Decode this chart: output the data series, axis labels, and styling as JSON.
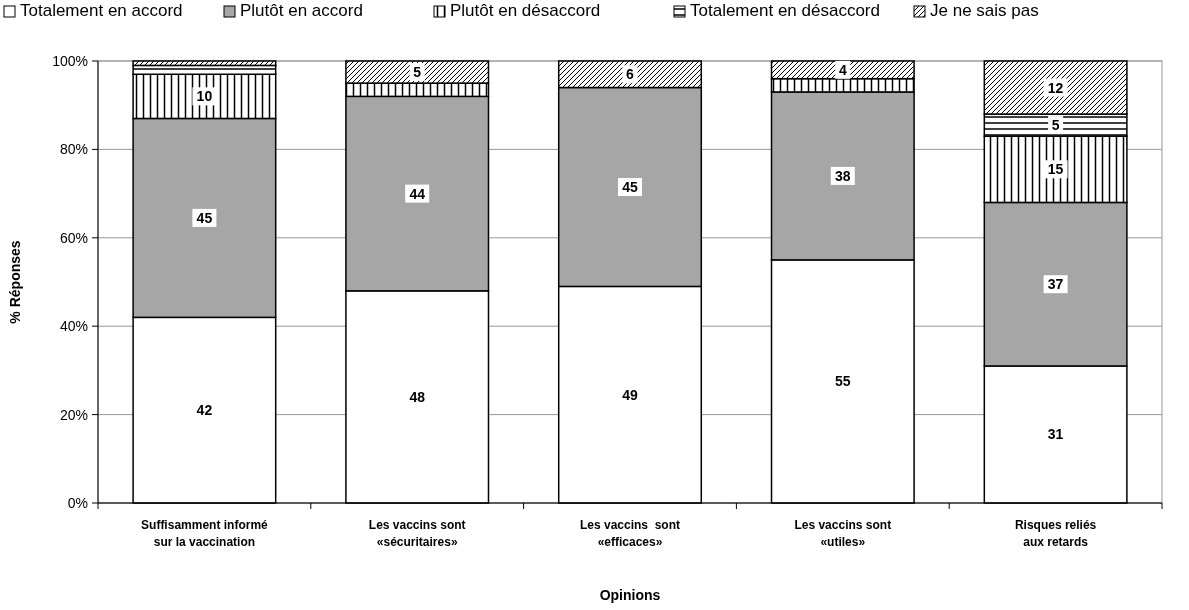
{
  "chart_data": {
    "type": "bar",
    "stacked": true,
    "xlabel": "Opinions",
    "ylabel": "% Réponses",
    "categories": [
      "Suffisamment informé\nsur la vaccination",
      "Les vaccins sont\n«sécuritaires»",
      "Les vaccins  sont\n«efficaces»",
      "Les vaccins sont\n«utiles»",
      "Risques reliés\naux retards"
    ],
    "series": [
      {
        "name": "Totalement en accord",
        "color": "#ffffff",
        "values": [
          42,
          48,
          49,
          55,
          31
        ],
        "value_labels": [
          "42",
          "48",
          "49",
          "55",
          "31"
        ]
      },
      {
        "name": "Plutôt en accord",
        "color": "#a6a6a6",
        "values": [
          45,
          44,
          45,
          38,
          37
        ],
        "value_labels": [
          "45",
          "44",
          "45",
          "38",
          "37"
        ]
      },
      {
        "name": "Plutôt en désaccord",
        "color": "#000000",
        "values": [
          10,
          3,
          0,
          3,
          15
        ],
        "value_labels": [
          "10",
          null,
          null,
          null,
          "15"
        ]
      },
      {
        "name": "Totalement en désaccord",
        "color": "#000000",
        "values": [
          2,
          0,
          0,
          0,
          5
        ],
        "value_labels": [
          null,
          null,
          null,
          null,
          "5"
        ]
      },
      {
        "name": "Je ne sais pas",
        "color": "#000000",
        "values": [
          1,
          5,
          6,
          4,
          12
        ],
        "value_labels": [
          null,
          "5",
          "6",
          "4",
          "12"
        ]
      }
    ],
    "ylim": [
      0,
      100
    ],
    "yticks": [
      {
        "value": 0,
        "label": "0%"
      },
      {
        "value": 20,
        "label": "20%"
      },
      {
        "value": 40,
        "label": "40%"
      },
      {
        "value": 60,
        "label": "60%"
      },
      {
        "value": 80,
        "label": "80%"
      },
      {
        "value": 100,
        "label": "100%"
      }
    ],
    "grid": "y",
    "legend": "top"
  }
}
